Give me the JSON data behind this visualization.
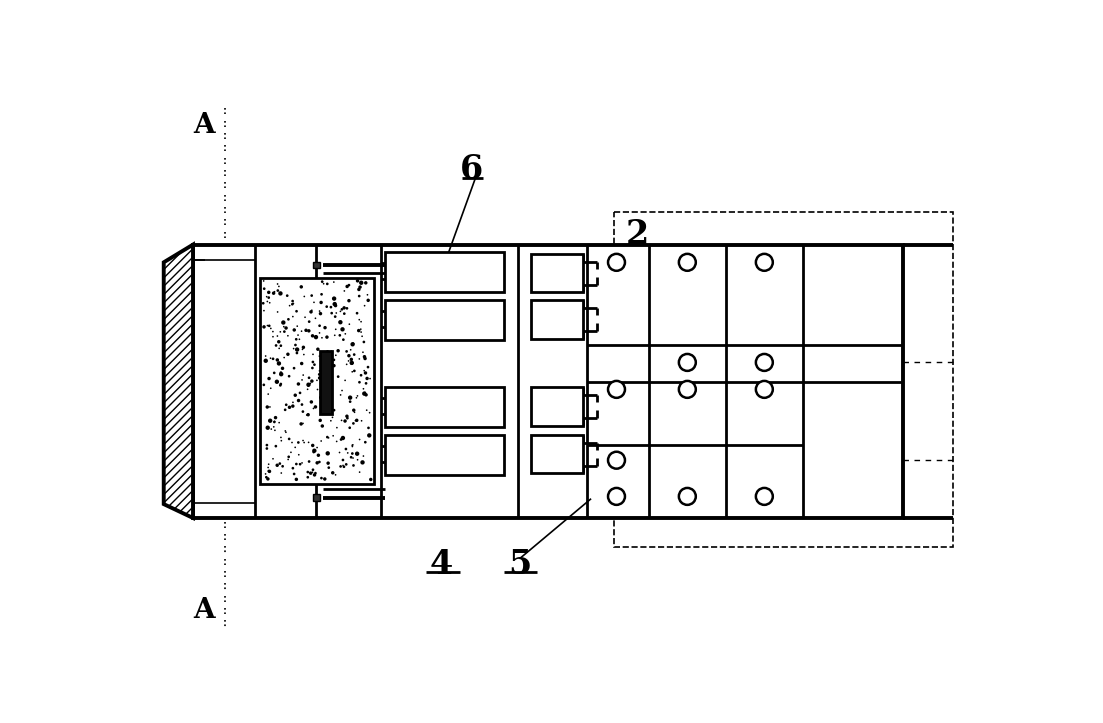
{
  "bg_color": "#ffffff",
  "line_color": "#000000",
  "labels": {
    "A_top": "A",
    "A_bottom": "A",
    "label_2": "2",
    "label_4": "4",
    "label_5": "5",
    "label_6": "6"
  },
  "figsize": [
    11.03,
    7.23
  ],
  "dpi": 100
}
